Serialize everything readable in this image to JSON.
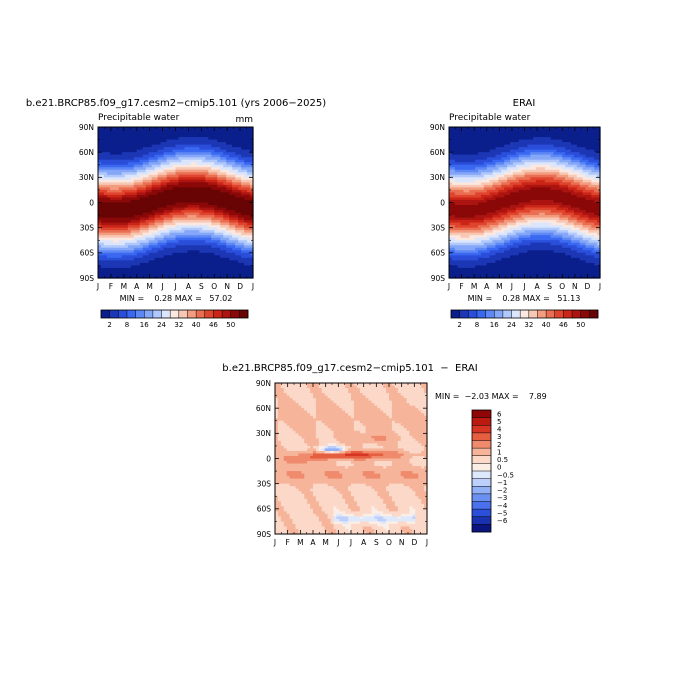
{
  "panels": [
    {
      "id": "model",
      "title": "b.e21.BRCP85.f09_g17.cesm2−cmip5.101 (yrs 2006−2025)",
      "left_label": "Precipitable water",
      "units": "mm",
      "stats": "MIN =    0.28 MAX =   57.02"
    },
    {
      "id": "erai",
      "title": "ERAI",
      "left_label": "Precipitable water",
      "units": "",
      "stats": "MIN =    0.28 MAX =   51.13"
    },
    {
      "id": "diff",
      "title": "b.e21.BRCP85.f09_g17.cesm2−cmip5.101  −  ERAI",
      "left_label": "",
      "units": "",
      "stats": "MIN =  −2.03 MAX =    7.89"
    }
  ],
  "chart_data": [
    {
      "type": "heatmap",
      "title": "b.e21.BRCP85.f09_g17.cesm2−cmip5.101 (yrs 2006−2025)",
      "subtitle": "Precipitable water",
      "units": "mm",
      "x_ticks": [
        "J",
        "F",
        "M",
        "A",
        "M",
        "J",
        "J",
        "A",
        "S",
        "O",
        "N",
        "D",
        "J"
      ],
      "y_ticks": [
        "90N",
        "60N",
        "30N",
        "0",
        "30S",
        "60S",
        "90S"
      ],
      "min": 0.28,
      "max": 57.02,
      "peak_month": 7.3,
      "itcz_amplitude_deg": 10,
      "colorbar_labels": [
        "2",
        "8",
        "16",
        "24",
        "32",
        "40",
        "46",
        "50"
      ],
      "colorbar_levels": [
        2,
        4,
        6,
        8,
        10,
        13,
        16,
        20,
        24,
        28,
        32,
        36,
        40,
        43,
        46,
        50
      ],
      "colors": [
        "#0a1f8c",
        "#1c37b5",
        "#2a4ed9",
        "#3a68f0",
        "#5e88f5",
        "#85a7f8",
        "#b0c8fb",
        "#dbe6fd",
        "#fbe8e0",
        "#f8c8b5",
        "#f29c80",
        "#ea6e52",
        "#df452e",
        "#cb2517",
        "#ab1410",
        "#8a0808",
        "#680404"
      ]
    },
    {
      "type": "heatmap",
      "title": "ERAI",
      "subtitle": "Precipitable water",
      "x_ticks": [
        "J",
        "F",
        "M",
        "A",
        "M",
        "J",
        "J",
        "A",
        "S",
        "O",
        "N",
        "D",
        "J"
      ],
      "y_ticks": [
        "90N",
        "60N",
        "30N",
        "0",
        "30S",
        "60S",
        "90S"
      ],
      "min": 0.28,
      "max": 51.13,
      "peak_month": 7.3,
      "itcz_amplitude_deg": 10,
      "colorbar_labels": [
        "2",
        "8",
        "16",
        "24",
        "32",
        "40",
        "46",
        "50"
      ],
      "colorbar_levels": [
        2,
        4,
        6,
        8,
        10,
        13,
        16,
        20,
        24,
        28,
        32,
        36,
        40,
        43,
        46,
        50
      ],
      "colors": [
        "#0a1f8c",
        "#1c37b5",
        "#2a4ed9",
        "#3a68f0",
        "#5e88f5",
        "#85a7f8",
        "#b0c8fb",
        "#dbe6fd",
        "#fbe8e0",
        "#f8c8b5",
        "#f29c80",
        "#ea6e52",
        "#df452e",
        "#cb2517",
        "#ab1410",
        "#8a0808",
        "#680404"
      ]
    },
    {
      "type": "heatmap",
      "title": "b.e21.BRCP85.f09_g17.cesm2−cmip5.101  −  ERAI",
      "x_ticks": [
        "J",
        "F",
        "M",
        "A",
        "M",
        "J",
        "J",
        "A",
        "S",
        "O",
        "N",
        "D",
        "J"
      ],
      "y_ticks": [
        "90N",
        "60N",
        "30N",
        "0",
        "30S",
        "60S",
        "90S"
      ],
      "min": -2.03,
      "max": 7.89,
      "colorbar_labels": [
        "6",
        "5",
        "4",
        "3",
        "2",
        "1",
        "0.5",
        "0",
        "−0.5",
        "−1",
        "−2",
        "−3",
        "−4",
        "−5",
        "−6"
      ],
      "colorbar_levels": [
        -6,
        -5,
        -4,
        -3,
        -2,
        -1,
        -0.5,
        0,
        0.5,
        1,
        2,
        3,
        4,
        5,
        6
      ],
      "colors": [
        "#0a1580",
        "#1a32b0",
        "#2c4fd9",
        "#4a70ee",
        "#6a90f2",
        "#92b0f6",
        "#bcd0fb",
        "#dde8fd",
        "#fbeee6",
        "#fbd8c8",
        "#f6b59a",
        "#ef8b6c",
        "#e55e40",
        "#d73523",
        "#bb1a10",
        "#8e0606"
      ]
    }
  ]
}
